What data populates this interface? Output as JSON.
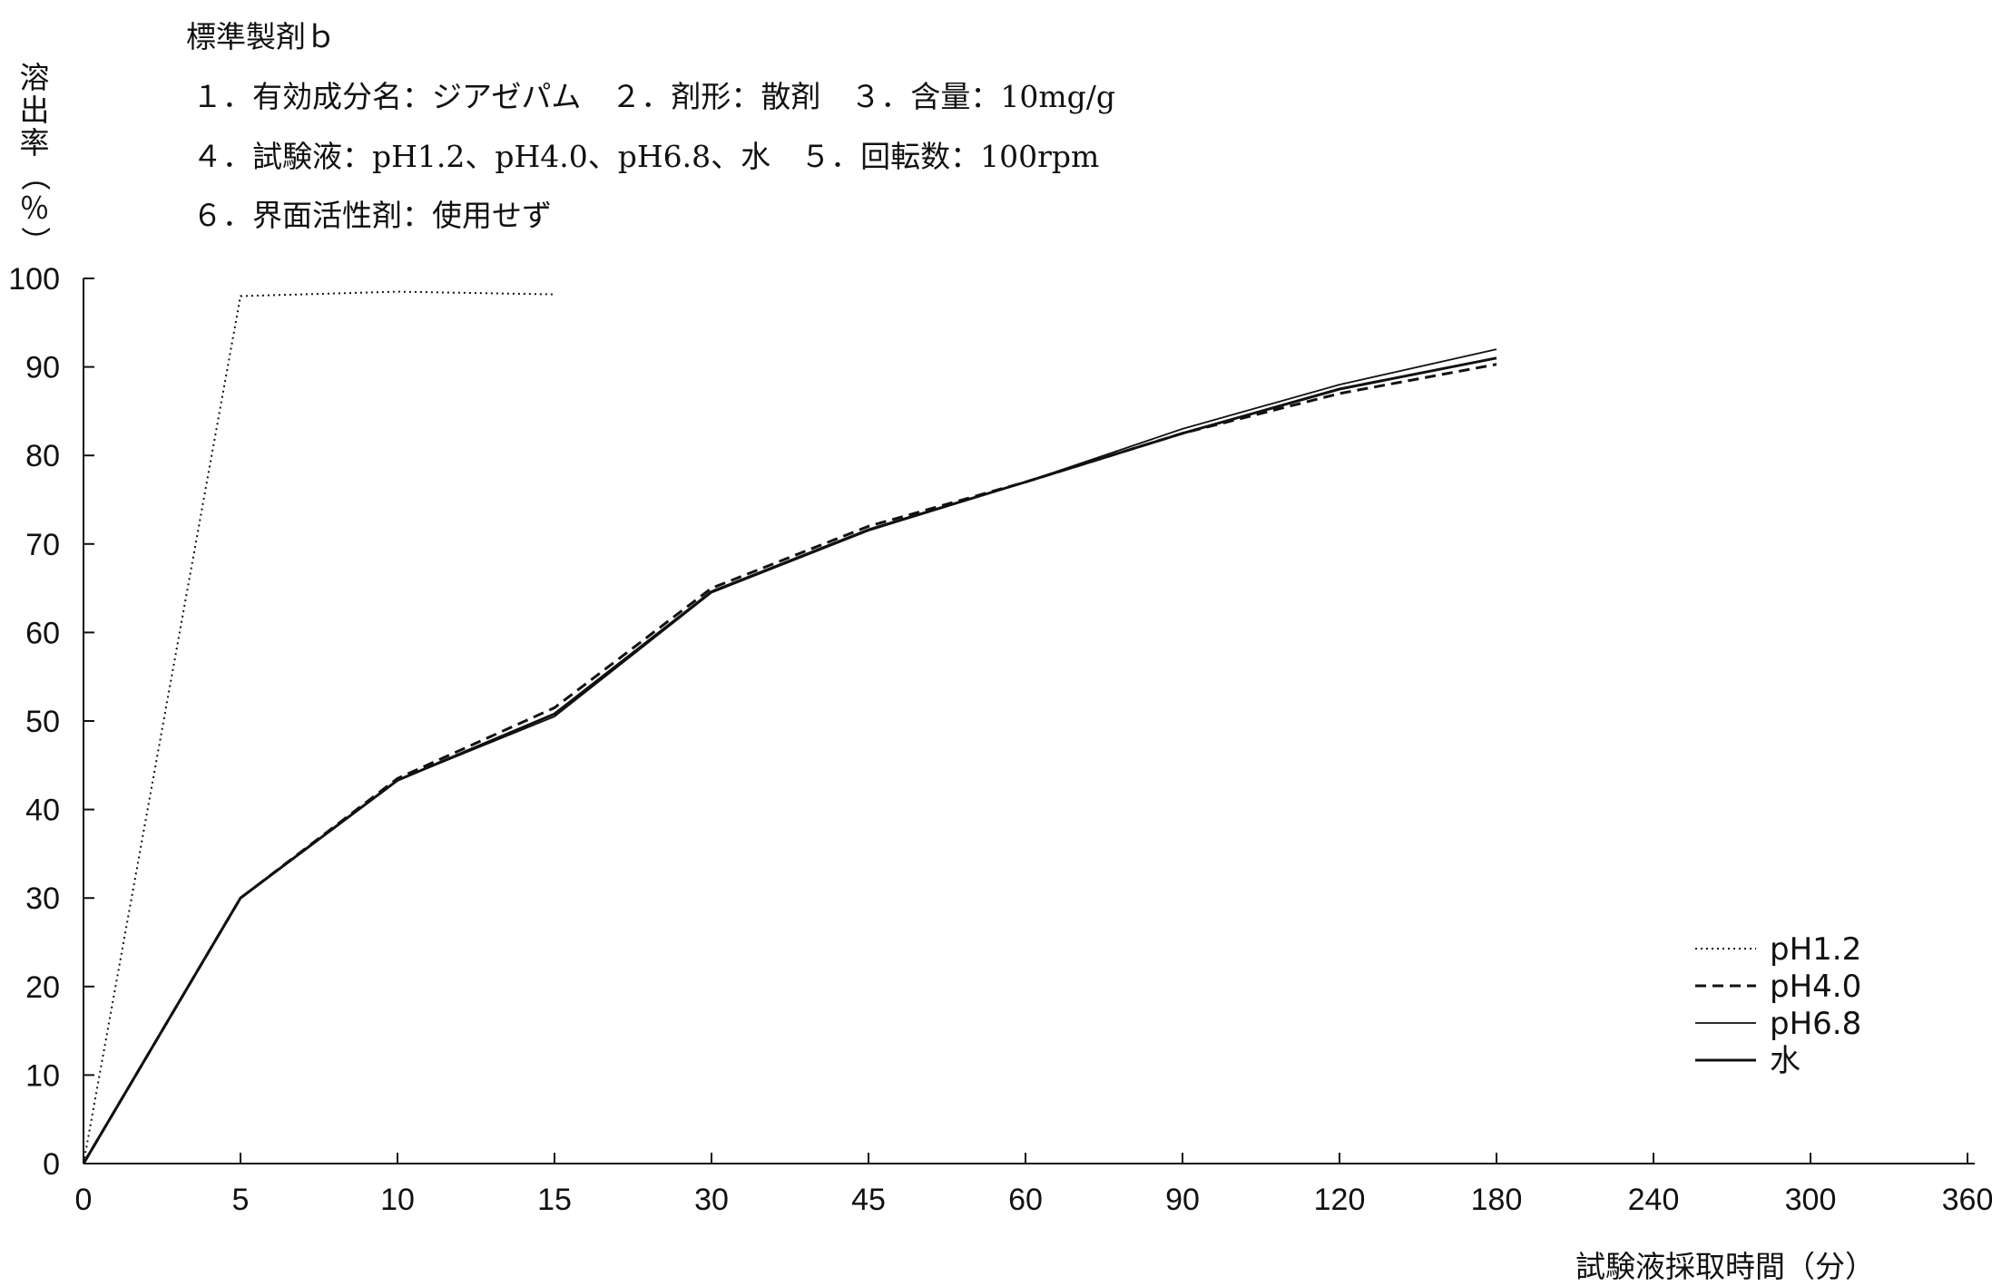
{
  "chart_data": {
    "type": "line",
    "title": "標準製剤ｂ",
    "info_lines": [
      "１．有効成分名：ジアゼパム　２．剤形：散剤　３．含量：10mg/g",
      "４．試験液：pH1.2、pH4.0、pH6.8、水　５．回転数：100rpm",
      "６．界面活性剤：使用せず"
    ],
    "ylabel": "溶出率（％）",
    "xlabel": "試験液採取時間（分）",
    "x_ticks": [
      "0",
      "5",
      "10",
      "15",
      "30",
      "45",
      "60",
      "90",
      "120",
      "180",
      "240",
      "300",
      "360"
    ],
    "y_ticks": [
      "0",
      "10",
      "20",
      "30",
      "40",
      "50",
      "60",
      "70",
      "80",
      "90",
      "100"
    ],
    "ylim": [
      0,
      100
    ],
    "series": [
      {
        "name": "pH1.2",
        "style": "dotted",
        "x": [
          0,
          5,
          10,
          15
        ],
        "values": [
          0,
          98,
          98.5,
          98.2
        ]
      },
      {
        "name": "pH4.0",
        "style": "dashed",
        "x": [
          0,
          5,
          10,
          15,
          30,
          45,
          60,
          90,
          120,
          180
        ],
        "values": [
          0,
          30,
          43.5,
          51.5,
          65,
          72,
          77,
          82.5,
          87,
          90.3
        ]
      },
      {
        "name": "pH6.8",
        "style": "solid-thin",
        "x": [
          0,
          5,
          10,
          15,
          30,
          45,
          60,
          90,
          120,
          180
        ],
        "values": [
          0,
          30,
          43.3,
          50.5,
          64.5,
          71.5,
          77,
          83,
          88,
          92
        ]
      },
      {
        "name": "水",
        "style": "solid",
        "x": [
          0,
          5,
          10,
          15,
          30,
          45,
          60,
          90,
          120,
          180
        ],
        "values": [
          0,
          30,
          43.3,
          50.8,
          64.6,
          71.6,
          77,
          82.5,
          87.5,
          91
        ]
      }
    ],
    "legend_position": "bottom-right"
  }
}
